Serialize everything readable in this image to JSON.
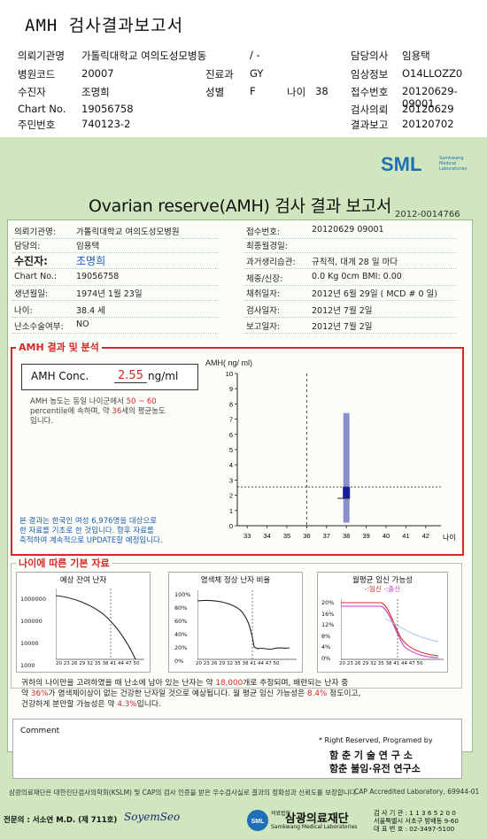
{
  "top": {
    "title": "AMH 검사결과보고서",
    "rows": [
      {
        "k1": "의뢰기관명",
        "v1": "가톨릭대학교 여의도성모병동",
        "k2": "",
        "v2": "/ -",
        "k3": "담당의사",
        "v3": "임용택"
      },
      {
        "k1": "병원코드",
        "v1": "20007",
        "k2": "진료과",
        "v2": "GY",
        "k3": "임상정보",
        "v3": "O14LLOZZ0"
      },
      {
        "k1": "수진자",
        "v1": "조명희",
        "k2": "성별",
        "v2": "F",
        "k2b": "나이",
        "v2b": "38",
        "k3": "접수번호",
        "v3": "20120629-09001"
      },
      {
        "k1": "Chart No.",
        "v1": "19056758",
        "k2": "",
        "v2": "",
        "k3": "검사의뢰",
        "v3": "20120629"
      },
      {
        "k1": "주민번호",
        "v1": "740123-2",
        "k2": "",
        "v2": "",
        "k3": "결과보고",
        "v3": "20120702"
      }
    ]
  },
  "form": {
    "logo_text": "SML",
    "logo_sub1": "Samkwang",
    "logo_sub2": "Medical",
    "logo_sub3": "Laboratories",
    "title": "Ovarian reserve(AMH) 검사 결과 보고서",
    "doc_no": "2012-0014766",
    "left_info": [
      {
        "k": "의뢰기관명:",
        "v": "가톨릭대학교 여의도성모병원"
      },
      {
        "k": "담당의:",
        "v": "임용택"
      },
      {
        "k": "수진자:",
        "v": "조명희"
      },
      {
        "k": "Chart No.:",
        "v": "19056758"
      },
      {
        "k": "생년월일:",
        "v": "1974년 1월 23일"
      },
      {
        "k": "나이:",
        "v": "38.4 세"
      },
      {
        "k": "난소수술여부:",
        "v": "NO"
      }
    ],
    "right_info": [
      {
        "k": "접수번호:",
        "v": "20120629 09001"
      },
      {
        "k": "최종월경일:",
        "v": ""
      },
      {
        "k": "과거생리습관:",
        "v": "규칙적, 대개  28 일 마다"
      },
      {
        "k": "체중/신장:",
        "v": "0.0 Kg      0cm    BMI:  0.00"
      },
      {
        "k": "채취일자:",
        "v": "2012년 6월 29일   ( MCD # 0 일)"
      },
      {
        "k": "검사일자:",
        "v": "2012년 7월 2일"
      },
      {
        "k": "보고일자:",
        "v": "2012년 7월 2일"
      }
    ],
    "amh": {
      "section_label": "AMH 결과 및 분석",
      "conc_label": "AMH Conc.",
      "conc_value": "2.55",
      "conc_unit": "ng/ml",
      "note1": "AMH 농도는 동일 나이군에서",
      "note_range": "50 ~ 60",
      "note2": "percentile에 속하며, 약",
      "note_age": "36",
      "note3": "세의 평균농도",
      "note4": "입니다.",
      "bottom1": "본 결과는 한국인 여성 6,976명을 대상으로",
      "bottom2": "한 자료를 기초로 한 것입니다. 향후 자료를",
      "bottom3": "축적하여 계속적으로 UPDATE할 예정입니다."
    },
    "age_section": {
      "label": "나이에 따른 기본 자료",
      "mini1_title": "예상 잔여 난자",
      "mini2_title": "염색체 정상 난자 비율",
      "mini3_title": "월평균 임신 가능성",
      "mini3_legend_a": "임신",
      "mini3_legend_b": "출산",
      "mini1_yticks": [
        "1000000",
        "100000",
        "10000",
        "1000"
      ],
      "mini2_yticks": [
        "100%",
        "80%",
        "60%",
        "40%",
        "20%",
        "0%"
      ],
      "mini3_yticks": [
        "20%",
        "16%",
        "12%",
        "8%",
        "4%",
        "0%"
      ],
      "mini_xticks": "20 23 26 29 32 35 38 41 44 47 50",
      "mini2_xticks": "20 23 26 29 32 35 38 41 44 47 50",
      "mini3_xticks": "20 23 26 29 32 35 38 41 44 47 50",
      "text1a": "귀하의 나이만을 고려하였을 때 난소에 남아 있는 난자는 약",
      "text1b": "18,000",
      "text1c": "개로 추정되며, 배란되는 난자 중",
      "text2a": "약",
      "text2b": "36%",
      "text2c": "가 염색체이상이 없는 건강한 난자일 것으로 예상됩니다. 월 평균 임신 가능성은",
      "text2d": "8.4%",
      "text2e": "정도이고,",
      "text3a": "건강하게 분만할 가능성은 약",
      "text3b": "4.3%",
      "text3c": "입니다."
    },
    "comment_label": "Comment",
    "rights1": "* Right Reserved, Programed by",
    "rights2": "함 춘  기 술  연 구 소",
    "rights3": "함춘 불임·유전 연구소",
    "footer_left": "삼광의료재단은 대한진단검사의학회(KSLM) 및 CAP의 검사 인증을 받은 우수검사실로 결과의 정확성과 신뢰도를 보장합니다.",
    "footer_right": "CAP  Accredited  Laboratory,  69944-01",
    "doctor": "전문의 : 서소연 M.D. (제 711호)",
    "signature": "SoyemSeo",
    "org_name": "삼광의료재단",
    "org_pre": "의료법인",
    "org_en": "Samkwang Medical Laboratories",
    "contact1": "검 사 기 관 : 1 1 3 6 5 2 0 0",
    "contact2": "서울특별시 서초구 방배동 9-60",
    "contact3": "대 표 번 호 : 02-3497-5100"
  },
  "chart_data": {
    "type": "scatter",
    "ylabel": "AMH( ng/ ml)",
    "xlabel": "나이",
    "x_ticks": [
      33,
      34,
      35,
      36,
      37,
      38,
      39,
      40,
      41,
      42
    ],
    "y_ticks": [
      0,
      1,
      2,
      3,
      4,
      5,
      6,
      7,
      8,
      9,
      10
    ],
    "ylim": [
      0,
      10
    ],
    "patient": {
      "age": 38,
      "amh": 2.55
    },
    "reference_bar": {
      "age": 38,
      "low": 0.2,
      "high": 7.4
    },
    "mean_marker": {
      "age": 38,
      "amh": 1.8
    },
    "reference_age_line": 36,
    "colors": {
      "bar": "#8a8fcc",
      "patient": "#1a1aa0",
      "lines": "#333333"
    }
  }
}
